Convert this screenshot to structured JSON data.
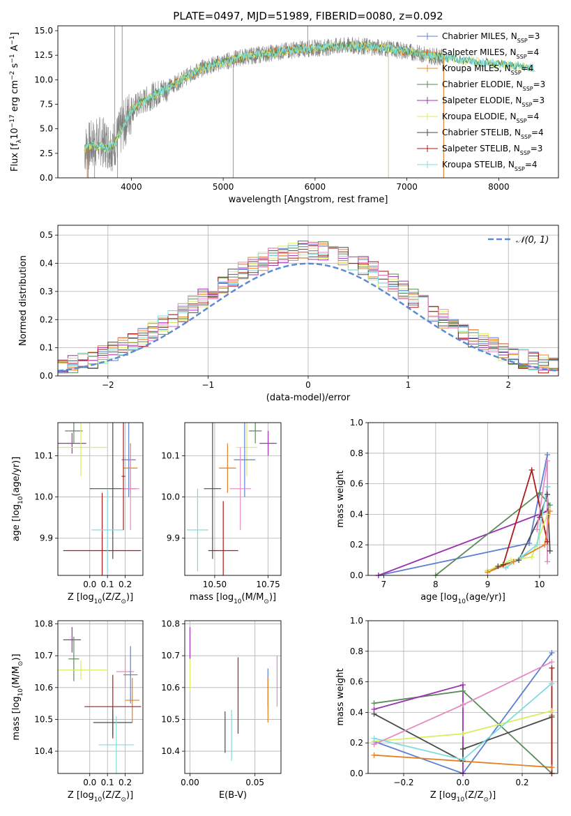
{
  "colors": {
    "Chabrier MILES": "#5b7fd4",
    "Salpeter MILES": "#e67e22",
    "Kroupa MILES": "#e3882e",
    "Chabrier ELODIE": "#5a8a5a",
    "Salpeter ELODIE": "#9b30b0",
    "Kroupa ELODIE": "#d8ee60",
    "Chabrier STELIB": "#4a4a4a",
    "Salpeter STELIB": "#b01818",
    "Kroupa STELIB": "#7fdcdc",
    "pink": "#e78ac3",
    "normal": "#5b8bd4",
    "data": "#808080"
  },
  "chart_data": [
    {
      "id": "spectrum",
      "type": "line",
      "title": "PLATE=0497, MJD=51989, FIBERID=0080, z=0.092",
      "xlabel": "wavelength [Angstrom, rest frame]",
      "ylabel_parts": [
        "Flux [f",
        "λ",
        "10",
        "−17",
        " erg cm",
        "−2",
        " s",
        "−1",
        " A",
        "−1",
        "]"
      ],
      "xlim": [
        3200,
        8650
      ],
      "ylim": [
        0,
        15.5
      ],
      "xticks": [
        4000,
        5000,
        6000,
        7000,
        8000
      ],
      "yticks": [
        0.0,
        2.5,
        5.0,
        7.5,
        10.0,
        12.5,
        15.0
      ],
      "xtick_labels": [
        "4000",
        "5000",
        "6000",
        "7000",
        "8000"
      ],
      "ytick_labels": [
        "0.0",
        "2.5",
        "5.0",
        "7.5",
        "10.0",
        "12.5",
        "15.0"
      ],
      "legend": {
        "placement": "right",
        "entries": [
          {
            "model": "Chabrier MILES",
            "n": "3"
          },
          {
            "model": "Salpeter MILES",
            "n": "4"
          },
          {
            "model": "Kroupa MILES",
            "n": "4"
          },
          {
            "model": "Chabrier ELODIE",
            "n": "3"
          },
          {
            "model": "Salpeter ELODIE",
            "n": "3"
          },
          {
            "model": "Kroupa ELODIE",
            "n": "4"
          },
          {
            "model": "Chabrier STELIB",
            "n": "4"
          },
          {
            "model": "Salpeter STELIB",
            "n": "3"
          },
          {
            "model": "Kroupa STELIB",
            "n": "4"
          }
        ]
      },
      "continuum_x": [
        3500,
        3650,
        3800,
        3900,
        4000,
        4200,
        4400,
        4600,
        4800,
        5000,
        5200,
        5500,
        5800,
        6100,
        6400,
        6700,
        7000,
        7300,
        7600,
        8000,
        8400
      ],
      "continuum_y": [
        3.0,
        3.8,
        3.2,
        5.0,
        7.0,
        8.2,
        9.2,
        10.3,
        11.3,
        11.8,
        12.3,
        12.7,
        13.1,
        13.3,
        13.5,
        13.3,
        12.9,
        12.4,
        12.0,
        11.6,
        11.2
      ],
      "data_xrange": [
        3490,
        7410
      ]
    },
    {
      "id": "residuals",
      "type": "step",
      "xlabel": "(data-model)/error",
      "ylabel": "Normed distribution",
      "xlim": [
        -2.5,
        2.5
      ],
      "ylim": [
        0,
        0.535
      ],
      "xticks": [
        -2,
        -1,
        0,
        1,
        2
      ],
      "xtick_labels": [
        "−2",
        "−1",
        "0",
        "1",
        "2"
      ],
      "yticks": [
        0.0,
        0.1,
        0.2,
        0.3,
        0.4,
        0.5
      ],
      "ytick_labels": [
        "0.0",
        "0.1",
        "0.2",
        "0.3",
        "0.4",
        "0.5"
      ],
      "legend": {
        "placement": "top-right",
        "entry": "𝒩(0, 1)"
      },
      "bin_width": 0.1
    },
    {
      "id": "age-Z",
      "type": "errorbar",
      "xlabel_parts": [
        "Z [log",
        "10",
        "(Z/Z",
        "⊙",
        ")]"
      ],
      "ylabel_parts": [
        "age  [log",
        "10",
        "(age/yr)]"
      ],
      "xlim": [
        -0.18,
        0.3
      ],
      "ylim": [
        9.81,
        10.18
      ],
      "xticks": [
        0.0,
        0.1,
        0.2
      ],
      "xtick_labels": [
        "0.0",
        "0.1",
        "0.2"
      ],
      "yticks": [
        9.9,
        10.0,
        10.1
      ],
      "ytick_labels": [
        "9.9",
        "10.0",
        "10.1"
      ],
      "points": [
        {
          "model": "Chabrier ELODIE",
          "x": -0.09,
          "y": 10.16,
          "xerr": 0.05,
          "yerr": 0.03
        },
        {
          "model": "Salpeter ELODIE",
          "x": -0.1,
          "y": 10.13,
          "xerr": 0.08,
          "yerr": 0.025
        },
        {
          "model": "Kroupa ELODIE",
          "x": -0.05,
          "y": 10.12,
          "xerr": 0.15,
          "yerr": 0.07
        },
        {
          "model": "Chabrier STELIB",
          "x": 0.13,
          "y": 10.02,
          "xerr": 0.13,
          "yerr": 0.17
        },
        {
          "model": "Salpeter STELIB",
          "x": 0.07,
          "y": 9.87,
          "xerr": 0.22,
          "yerr": 0.14
        },
        {
          "model": "Kroupa STELIB",
          "x": 0.1,
          "y": 9.92,
          "xerr": 0.09,
          "yerr": 0.1
        },
        {
          "model": "Chabrier MILES",
          "x": 0.22,
          "y": 10.09,
          "xerr": 0.04,
          "yerr": 0.09
        },
        {
          "model": "Salpeter MILES",
          "x": 0.23,
          "y": 10.07,
          "xerr": 0.04,
          "yerr": 0.06
        },
        {
          "model": "pink",
          "x": 0.23,
          "y": 10.02,
          "xerr": 0.05,
          "yerr": 0.1
        },
        {
          "model": "Salpeter STELIB",
          "x": 0.19,
          "y": 10.05,
          "xerr": 0.01,
          "yerr": 0.13
        }
      ]
    },
    {
      "id": "age-mass",
      "type": "errorbar",
      "xlabel_parts": [
        "mass [log",
        "10",
        "(M/M",
        "⊙",
        ")]"
      ],
      "xlim": [
        10.36,
        10.81
      ],
      "ylim": [
        9.81,
        10.18
      ],
      "xticks": [
        10.5,
        10.75
      ],
      "xtick_labels": [
        "10.50",
        "10.75"
      ],
      "yticks": [
        9.9,
        10.0,
        10.1
      ],
      "ytick_labels": [
        "9.9",
        "10.0",
        "10.1"
      ],
      "points": [
        {
          "model": "Chabrier ELODIE",
          "x": 10.69,
          "y": 10.16,
          "xerr": 0.03,
          "yerr": 0.03
        },
        {
          "model": "Salpeter ELODIE",
          "x": 10.75,
          "y": 10.13,
          "xerr": 0.04,
          "yerr": 0.03
        },
        {
          "model": "Kroupa ELODIE",
          "x": 10.65,
          "y": 10.12,
          "xerr": 0.05,
          "yerr": 0.07
        },
        {
          "model": "Chabrier MILES",
          "x": 10.64,
          "y": 10.09,
          "xerr": 0.05,
          "yerr": 0.09
        },
        {
          "model": "Salpeter MILES",
          "x": 10.56,
          "y": 10.07,
          "xerr": 0.04,
          "yerr": 0.06
        },
        {
          "model": "pink",
          "x": 10.62,
          "y": 10.02,
          "xerr": 0.05,
          "yerr": 0.1
        },
        {
          "model": "Chabrier STELIB",
          "x": 10.49,
          "y": 10.02,
          "xerr": 0.04,
          "yerr": 0.17
        },
        {
          "model": "Kroupa STELIB",
          "x": 10.42,
          "y": 9.92,
          "xerr": 0.05,
          "yerr": 0.1
        },
        {
          "model": "Salpeter STELIB",
          "x": 10.54,
          "y": 9.87,
          "xerr": 0.07,
          "yerr": 0.12
        }
      ]
    },
    {
      "id": "weight-age",
      "type": "line",
      "xlabel_parts": [
        "age  [log",
        "10",
        "(age/yr)]"
      ],
      "ylabel": "mass weight",
      "xlim": [
        6.7,
        10.35
      ],
      "ylim": [
        0,
        1.0
      ],
      "xticks": [
        7,
        8,
        9,
        10
      ],
      "xtick_labels": [
        "7",
        "8",
        "9",
        "10"
      ],
      "yticks": [
        0.0,
        0.2,
        0.4,
        0.6,
        0.8,
        1.0
      ],
      "ytick_labels": [
        "0.0",
        "0.2",
        "0.4",
        "0.6",
        "0.8",
        "1.0"
      ],
      "series": [
        {
          "model": "Chabrier MILES",
          "x": [
            6.9,
            9.8,
            10.15
          ],
          "y": [
            0.0,
            0.21,
            0.79
          ]
        },
        {
          "model": "Salpeter ELODIE",
          "x": [
            6.9,
            10.15,
            10.15
          ],
          "y": [
            0.0,
            0.42,
            0.58
          ]
        },
        {
          "model": "Chabrier ELODIE",
          "x": [
            8.0,
            10.0,
            10.2
          ],
          "y": [
            0.0,
            0.54,
            0.46
          ]
        },
        {
          "model": "Salpeter STELIB",
          "x": [
            9.0,
            9.3,
            9.85,
            10.15
          ],
          "y": [
            0.03,
            0.07,
            0.69,
            0.22
          ]
        },
        {
          "model": "Chabrier STELIB",
          "x": [
            9.2,
            9.6,
            10.0,
            10.15,
            10.2
          ],
          "y": [
            0.06,
            0.1,
            0.38,
            0.53,
            0.16
          ]
        },
        {
          "model": "Kroupa ELODIE",
          "x": [
            9.0,
            9.45,
            9.85,
            10.15
          ],
          "y": [
            0.03,
            0.1,
            0.12,
            0.4
          ]
        },
        {
          "model": "Salpeter MILES",
          "x": [
            9.0,
            9.5,
            10.1,
            10.2
          ],
          "y": [
            0.02,
            0.09,
            0.2,
            0.42
          ]
        },
        {
          "model": "Kroupa STELIB",
          "x": [
            9.35,
            9.65,
            9.95,
            10.15
          ],
          "y": [
            0.05,
            0.12,
            0.2,
            0.58
          ]
        },
        {
          "model": "pink",
          "x": [
            9.95,
            10.15,
            10.15
          ],
          "y": [
            0.3,
            0.75,
            0.09
          ]
        }
      ]
    },
    {
      "id": "mass-Z",
      "type": "errorbar",
      "xlabel_parts": [
        "Z [log",
        "10",
        "(Z/Z",
        "⊙",
        ")]"
      ],
      "ylabel_parts": [
        "mass [log",
        "10",
        "(M/M",
        "⊙",
        ")]"
      ],
      "xlim": [
        -0.18,
        0.3
      ],
      "ylim": [
        10.33,
        10.81
      ],
      "xticks": [
        0.0,
        0.1,
        0.2
      ],
      "xtick_labels": [
        "0.0",
        "0.1",
        "0.2"
      ],
      "yticks": [
        10.4,
        10.5,
        10.6,
        10.7,
        10.8
      ],
      "ytick_labels": [
        "10.4",
        "10.5",
        "10.6",
        "10.7",
        "10.8"
      ],
      "points": [
        {
          "model": "Salpeter ELODIE",
          "x": -0.1,
          "y": 10.75,
          "xerr": 0.05,
          "yerr": 0.04
        },
        {
          "model": "Chabrier ELODIE",
          "x": -0.09,
          "y": 10.69,
          "xerr": 0.03,
          "yerr": 0.07
        },
        {
          "model": "Kroupa ELODIE",
          "x": -0.05,
          "y": 10.655,
          "xerr": 0.15,
          "yerr": 0.03
        },
        {
          "model": "pink",
          "x": 0.2,
          "y": 10.65,
          "xerr": 0.05,
          "yerr": 0.05
        },
        {
          "model": "Chabrier MILES",
          "x": 0.23,
          "y": 10.64,
          "xerr": 0.04,
          "yerr": 0.09
        },
        {
          "model": "Salpeter MILES",
          "x": 0.24,
          "y": 10.56,
          "xerr": 0.04,
          "yerr": 0.07
        },
        {
          "model": "Salpeter STELIB",
          "x": 0.13,
          "y": 10.54,
          "xerr": 0.16,
          "yerr": 0.1
        },
        {
          "model": "Chabrier STELIB",
          "x": 0.13,
          "y": 10.49,
          "xerr": 0.11,
          "yerr": 0.04
        },
        {
          "model": "Kroupa STELIB",
          "x": 0.15,
          "y": 10.42,
          "xerr": 0.1,
          "yerr": 0.09
        }
      ]
    },
    {
      "id": "mass-EBV",
      "type": "errorbar",
      "xlabel": "E(B-V)",
      "xlim": [
        -0.004,
        0.07
      ],
      "ylim": [
        10.33,
        10.81
      ],
      "xticks": [
        0.0,
        0.05
      ],
      "xtick_labels": [
        "0.00",
        "0.05"
      ],
      "yticks": [
        10.4,
        10.5,
        10.6,
        10.7,
        10.8
      ],
      "ytick_labels": [
        "10.4",
        "10.5",
        "10.6",
        "10.7",
        "10.8"
      ],
      "points": [
        {
          "model": "Salpeter ELODIE",
          "x": 0.0,
          "y": 10.74,
          "xerr": 0,
          "yerr": 0.05
        },
        {
          "model": "Kroupa ELODIE",
          "x": 0.0,
          "y": 10.64,
          "xerr": 0,
          "yerr": 0.05
        },
        {
          "model": "Chabrier STELIB",
          "x": 0.027,
          "y": 10.46,
          "xerr": 0,
          "yerr": 0.065
        },
        {
          "model": "Kroupa STELIB",
          "x": 0.032,
          "y": 10.45,
          "xerr": 0,
          "yerr": 0.08
        },
        {
          "model": "Salpeter STELIB",
          "x": 0.037,
          "y": 10.575,
          "xerr": 0,
          "yerr": 0.12
        },
        {
          "model": "Chabrier MILES",
          "x": 0.06,
          "y": 10.6,
          "xerr": 0,
          "yerr": 0.06
        },
        {
          "model": "Salpeter MILES",
          "x": 0.06,
          "y": 10.56,
          "xerr": 0,
          "yerr": 0.07
        },
        {
          "model": "pink",
          "x": 0.067,
          "y": 10.62,
          "xerr": 0,
          "yerr": 0.08
        }
      ]
    },
    {
      "id": "weight-Z",
      "type": "line",
      "xlabel_parts": [
        "Z [log",
        "10",
        "(Z/Z",
        "⊙",
        ")]"
      ],
      "ylabel": "mass weight",
      "xlim": [
        -0.32,
        0.32
      ],
      "ylim": [
        0,
        1.0
      ],
      "xticks": [
        -0.2,
        0.0,
        0.2
      ],
      "xtick_labels": [
        "−0.2",
        "0.0",
        "0.2"
      ],
      "yticks": [
        0.0,
        0.2,
        0.4,
        0.6,
        0.8,
        1.0
      ],
      "ytick_labels": [
        "0.0",
        "0.2",
        "0.4",
        "0.6",
        "0.8",
        "1.0"
      ],
      "series": [
        {
          "model": "Chabrier MILES",
          "x": [
            -0.3,
            0.0,
            0.3
          ],
          "y": [
            0.21,
            0.0,
            0.79
          ]
        },
        {
          "model": "Salpeter MILES",
          "x": [
            -0.3,
            0.3,
            0.3
          ],
          "y": [
            0.12,
            0.04,
            0.38
          ]
        },
        {
          "model": "Chabrier ELODIE",
          "x": [
            -0.3,
            0.0,
            0.3
          ],
          "y": [
            0.46,
            0.54,
            0.0
          ]
        },
        {
          "model": "Salpeter ELODIE",
          "x": [
            -0.3,
            0.0,
            0.0
          ],
          "y": [
            0.42,
            0.58,
            0.0
          ]
        },
        {
          "model": "Kroupa ELODIE",
          "x": [
            -0.3,
            0.0,
            0.3
          ],
          "y": [
            0.21,
            0.26,
            0.41
          ]
        },
        {
          "model": "Chabrier STELIB",
          "x": [
            -0.3,
            0.0,
            0.0,
            0.3
          ],
          "y": [
            0.39,
            0.08,
            0.16,
            0.37
          ]
        },
        {
          "model": "Salpeter STELIB",
          "x": [
            0.3,
            0.3
          ],
          "y": [
            0.69,
            0.0
          ]
        },
        {
          "model": "Kroupa STELIB",
          "x": [
            -0.3,
            0.0,
            0.3
          ],
          "y": [
            0.23,
            0.09,
            0.59
          ]
        },
        {
          "model": "pink",
          "x": [
            -0.3,
            0.0,
            0.3
          ],
          "y": [
            0.19,
            0.45,
            0.73
          ]
        }
      ]
    }
  ]
}
